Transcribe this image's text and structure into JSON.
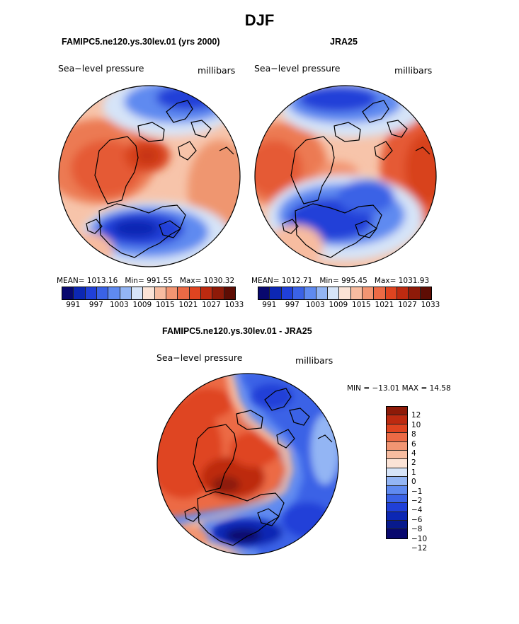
{
  "figure_title": "DJF",
  "panels": [
    {
      "title": "FAMIPC5.ne120.ys.30lev.01 (yrs 2000)",
      "field": "Sea−level pressure",
      "units": "millibars",
      "mean_label": "MEAN=",
      "mean": "1013.16",
      "min_label": "Min=",
      "min": "991.55",
      "max_label": "Max=",
      "max": "1030.32"
    },
    {
      "title": "JRA25",
      "field": "Sea−level pressure",
      "units": "millibars",
      "mean_label": "MEAN=",
      "mean": "1012.71",
      "min_label": "Min=",
      "min": "995.45",
      "max_label": "Max=",
      "max": "1031.93"
    },
    {
      "title": "FAMIPC5.ne120.ys.30lev.01 - JRA25",
      "field": "Sea−level pressure",
      "units": "millibars",
      "minmax_text": "MIN = −13.01  MAX =   14.58"
    }
  ],
  "colorbar_top": {
    "colors": [
      "#08086e",
      "#0c27b4",
      "#2040d8",
      "#3a62e6",
      "#5f8af0",
      "#93b5f4",
      "#d6e4f8",
      "#fbe3d6",
      "#f7bca0",
      "#f29572",
      "#ec6a45",
      "#df4420",
      "#bd2a10",
      "#8e1a08",
      "#5e0d04"
    ],
    "tick_labels": [
      "991",
      "997",
      "1003",
      "1009",
      "1015",
      "1021",
      "1027",
      "1033"
    ]
  },
  "colorbar_diff": {
    "colors": [
      "#8e1a08",
      "#bd2a10",
      "#df4420",
      "#ec6a45",
      "#f29572",
      "#f7bca0",
      "#fbe3d6",
      "#d6e4f8",
      "#93b5f4",
      "#5f8af0",
      "#3a62e6",
      "#2040d8",
      "#0c27b4",
      "#081a8c",
      "#08086e"
    ],
    "tick_labels": [
      "12",
      "10",
      "8",
      "6",
      "4",
      "2",
      "1",
      "0",
      "−1",
      "−2",
      "−4",
      "−6",
      "−8",
      "−10",
      "−12"
    ]
  },
  "chart_data": [
    {
      "type": "heatmap",
      "projection": "north-polar-stereographic",
      "title": "FAMIPC5.ne120.ys.30lev.01 (yrs 2000)",
      "variable": "Sea-level pressure",
      "units": "millibars",
      "mean": 1013.16,
      "min": 991.55,
      "max": 1030.32,
      "contour_levels": [
        991,
        994,
        997,
        1000,
        1003,
        1006,
        1009,
        1012,
        1015,
        1018,
        1021,
        1024,
        1027,
        1030,
        1033
      ]
    },
    {
      "type": "heatmap",
      "projection": "north-polar-stereographic",
      "title": "JRA25",
      "variable": "Sea-level pressure",
      "units": "millibars",
      "mean": 1012.71,
      "min": 995.45,
      "max": 1031.93,
      "contour_levels": [
        991,
        994,
        997,
        1000,
        1003,
        1006,
        1009,
        1012,
        1015,
        1018,
        1021,
        1024,
        1027,
        1030,
        1033
      ]
    },
    {
      "type": "heatmap",
      "projection": "north-polar-stereographic",
      "title": "FAMIPC5.ne120.ys.30lev.01 - JRA25",
      "variable": "Sea-level pressure difference",
      "units": "millibars",
      "min": -13.01,
      "max": 14.58,
      "contour_levels": [
        -12,
        -10,
        -8,
        -6,
        -4,
        -2,
        -1,
        0,
        1,
        2,
        4,
        6,
        8,
        10,
        12
      ]
    }
  ]
}
